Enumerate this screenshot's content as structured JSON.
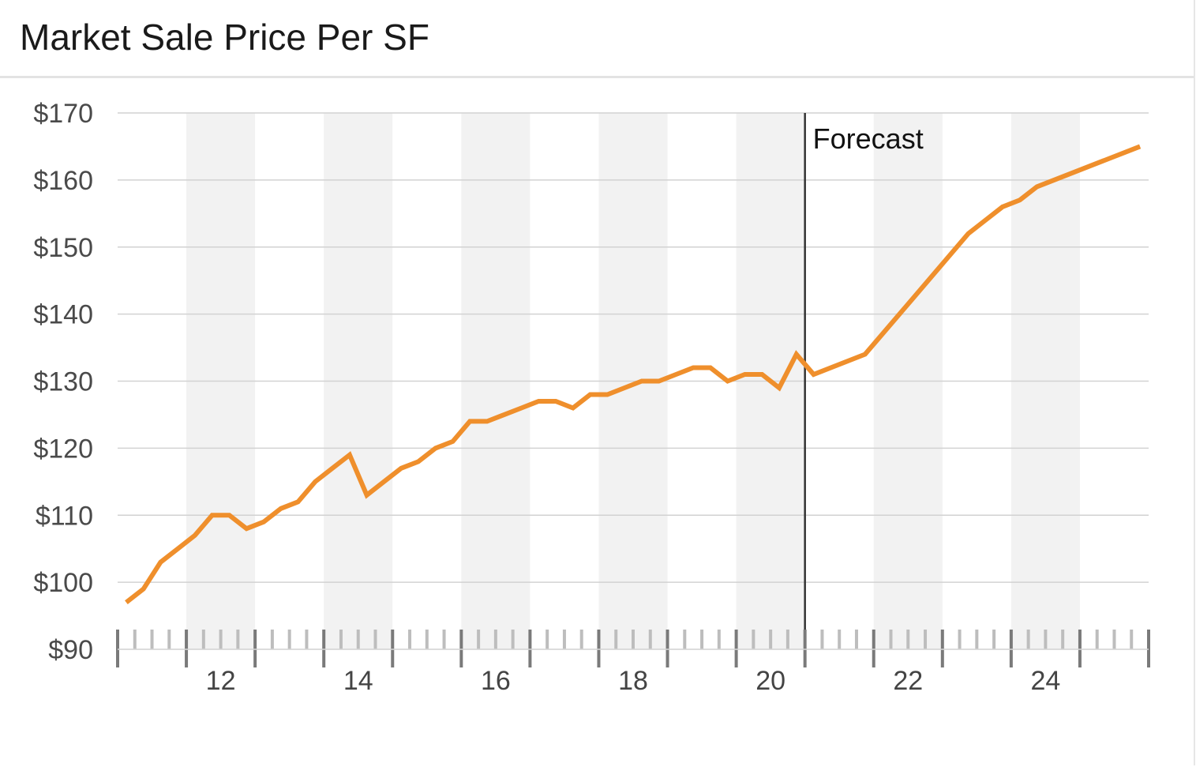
{
  "title": "Market Sale Price Per SF",
  "chart_data": {
    "type": "line",
    "title": "Market Sale Price Per SF",
    "xlabel": "",
    "ylabel": "",
    "ylim": [
      90,
      170
    ],
    "yticks": [
      90,
      100,
      110,
      120,
      130,
      140,
      150,
      160,
      170
    ],
    "ytick_labels": [
      "$90",
      "$100",
      "$110",
      "$120",
      "$130",
      "$140",
      "$150",
      "$160",
      "$170"
    ],
    "xlim": [
      2010.5,
      2025.5
    ],
    "xtick_labels": [
      "12",
      "14",
      "16",
      "18",
      "20",
      "22",
      "24"
    ],
    "xtick_values": [
      2012,
      2014,
      2016,
      2018,
      2020,
      2022,
      2024
    ],
    "grid": true,
    "shaded_years": [
      2012,
      2014,
      2016,
      2018,
      2020,
      2022,
      2024
    ],
    "annotations": [
      {
        "text": "Forecast",
        "x": 2020.5
      }
    ],
    "line_color": "#ef8f2c",
    "series": [
      {
        "x": [
          2010.625,
          2010.875,
          2011.125,
          2011.375,
          2011.625,
          2011.875,
          2012.125,
          2012.375,
          2012.625,
          2012.875,
          2013.125,
          2013.375,
          2013.625,
          2013.875,
          2014.125,
          2014.375,
          2014.625,
          2014.875,
          2015.125,
          2015.375,
          2015.625,
          2015.875,
          2016.125,
          2016.375,
          2016.625,
          2016.875,
          2017.125,
          2017.375,
          2017.625,
          2017.875,
          2018.125,
          2018.375,
          2018.625,
          2018.875,
          2019.125,
          2019.375,
          2019.625,
          2019.875,
          2020.125,
          2020.375,
          2020.625,
          2021.375,
          2022.125,
          2022.875,
          2023.125,
          2023.375,
          2023.625,
          2023.875,
          2025.375
        ],
        "values": [
          97,
          99,
          103,
          105,
          107,
          110,
          110,
          108,
          109,
          111,
          112,
          115,
          117,
          119,
          113,
          115,
          117,
          118,
          120,
          121,
          124,
          124,
          125,
          126,
          127,
          127,
          126,
          128,
          128,
          129,
          130,
          130,
          131,
          132,
          132,
          130,
          131,
          131,
          129,
          134,
          131,
          134,
          143,
          152,
          154,
          156,
          157,
          159,
          165
        ]
      }
    ]
  }
}
